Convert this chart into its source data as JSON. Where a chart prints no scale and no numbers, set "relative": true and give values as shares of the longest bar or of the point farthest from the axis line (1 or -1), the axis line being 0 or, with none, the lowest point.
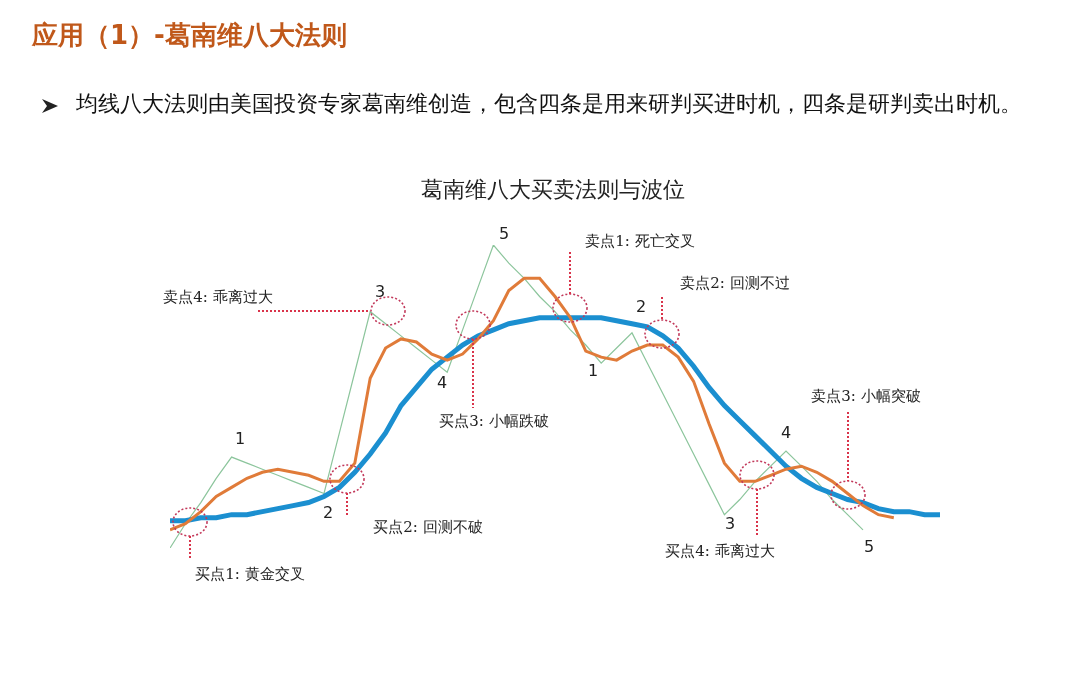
{
  "chart_data": {
    "type": "line",
    "relative": true,
    "title": "应用（1）-葛南维八大法则",
    "subtitle": "均线八大法则由美国投资专家葛南维创造，包含四条是用来研判买进时机，四条是研判卖出时机。",
    "marker": "none",
    "categories": [
      null,
      null,
      null,
      null,
      null,
      null,
      null,
      null,
      null,
      null,
      null,
      null,
      null,
      null,
      null,
      null,
      null,
      null,
      null,
      null,
      null,
      null,
      null,
      null,
      null,
      null,
      null,
      null,
      null,
      null,
      null,
      null,
      null,
      null,
      null,
      null,
      null,
      null,
      null,
      null,
      null,
      null,
      null,
      null,
      null,
      null,
      null,
      null,
      null,
      null,
      null
    ],
    "series": [
      {
        "color": "#8cc59c",
        "values": [
          0,
          0.08,
          0.15,
          0.23,
          0.3,
          0.28,
          0.26,
          0.24,
          0.22,
          0.2,
          0.18,
          0.38,
          0.58,
          0.78,
          0.74,
          0.7,
          0.66,
          0.62,
          0.58,
          0.72,
          0.86,
          1,
          0.94,
          0.89,
          0.83,
          0.78,
          0.72,
          0.67,
          0.61,
          0.66,
          0.71,
          0.61,
          0.51,
          0.41,
          0.31,
          0.21,
          0.11,
          0.16,
          0.22,
          0.27,
          0.32,
          0.27,
          0.22,
          0.16,
          0.11,
          0.06,
          null,
          null,
          null,
          null,
          null
        ]
      },
      {
        "color": "#1b8fd0",
        "values": [
          0.09,
          0.09,
          0.1,
          0.1,
          0.11,
          0.11,
          0.12,
          0.13,
          0.14,
          0.15,
          0.17,
          0.2,
          0.25,
          0.31,
          0.38,
          0.47,
          0.53,
          0.59,
          0.63,
          0.67,
          0.7,
          0.72,
          0.74,
          0.75,
          0.76,
          0.76,
          0.76,
          0.76,
          0.76,
          0.75,
          0.74,
          0.73,
          0.7,
          0.66,
          0.6,
          0.53,
          0.47,
          0.42,
          0.37,
          0.32,
          0.27,
          0.23,
          0.2,
          0.18,
          0.16,
          0.15,
          0.13,
          0.12,
          0.12,
          0.11,
          0.11
        ]
      },
      {
        "color": "#e07b39",
        "values": [
          0.06,
          0.08,
          0.12,
          0.17,
          0.2,
          0.23,
          0.25,
          0.26,
          0.25,
          0.24,
          0.22,
          0.22,
          0.28,
          0.56,
          0.66,
          0.69,
          0.68,
          0.64,
          0.62,
          0.64,
          0.69,
          0.75,
          0.85,
          0.89,
          0.89,
          0.83,
          0.76,
          0.65,
          0.63,
          0.62,
          0.65,
          0.67,
          0.67,
          0.63,
          0.55,
          0.41,
          0.28,
          0.22,
          0.22,
          0.24,
          0.26,
          0.27,
          0.25,
          0.22,
          0.18,
          0.14,
          0.11,
          0.1,
          null,
          null,
          null
        ]
      }
    ],
    "annotations": [
      "葛南维八大买卖法则与波位",
      "1",
      "2",
      "3",
      "4",
      "5",
      "1",
      "2",
      "3",
      "4",
      "5",
      "买点1: 黄金交叉",
      "买点2: 回测不破",
      "卖点4: 乖离过大",
      "买点3: 小幅跌破",
      "卖点1: 死亡交叉",
      "卖点2: 回测不过",
      "买点4: 乖离过大",
      "卖点3: 小幅突破"
    ]
  }
}
